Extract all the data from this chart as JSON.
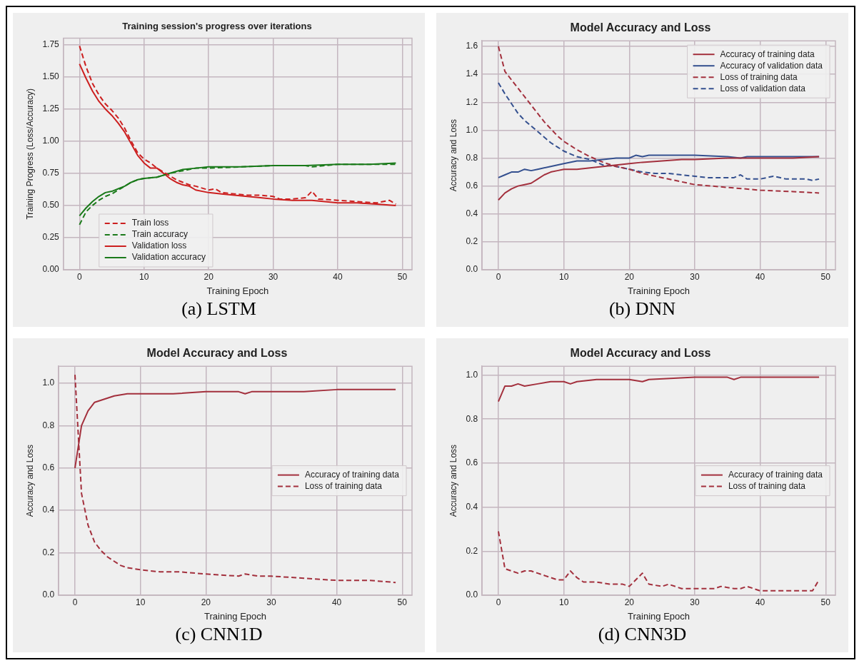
{
  "chart_data": [
    {
      "type": "line",
      "title": "Training session's progress over iterations",
      "xlabel": "Training Epoch",
      "ylabel": "Training Progress (Loss/Accuracy)",
      "annotations": [
        "(a) LSTM"
      ],
      "xlim": [
        -2.5,
        51.5
      ],
      "xticks": [
        0,
        10,
        20,
        30,
        40,
        50
      ],
      "ylim": [
        0,
        1.8
      ],
      "yticks": [
        {
          "value": 0,
          "label": "0.00"
        },
        0.25,
        {
          "value": 0.5,
          "label": "0.50"
        },
        0.75,
        {
          "value": 1,
          "label": "1.00"
        },
        1.25,
        {
          "value": 1.5,
          "label": "1.50"
        },
        1.75
      ],
      "grid": true,
      "legend": "bottom left",
      "series": [
        {
          "name": "Train loss",
          "color": "#cc1f1f",
          "line_style": "dashed",
          "x": [
            0,
            1,
            2,
            3,
            4,
            5,
            6,
            7,
            8,
            9,
            10,
            11,
            12,
            13,
            14,
            15,
            16,
            17,
            18,
            20,
            21,
            22,
            24,
            26,
            28,
            30,
            31,
            33,
            35,
            36,
            37,
            40,
            43,
            46,
            48,
            49
          ],
          "values": [
            1.74,
            1.58,
            1.45,
            1.36,
            1.29,
            1.24,
            1.18,
            1.1,
            1.0,
            0.91,
            0.86,
            0.83,
            0.79,
            0.76,
            0.73,
            0.7,
            0.68,
            0.66,
            0.65,
            0.62,
            0.63,
            0.6,
            0.59,
            0.58,
            0.58,
            0.57,
            0.55,
            0.55,
            0.56,
            0.61,
            0.55,
            0.54,
            0.53,
            0.52,
            0.54,
            0.51
          ]
        },
        {
          "name": "Train accuracy",
          "color": "#1a7a1a",
          "line_style": "dashed",
          "x": [
            0,
            1,
            2,
            3,
            4,
            5,
            6,
            7,
            8,
            9,
            10,
            12,
            14,
            16,
            18,
            20,
            25,
            30,
            35,
            36,
            40,
            45,
            49
          ],
          "values": [
            0.35,
            0.45,
            0.5,
            0.54,
            0.57,
            0.59,
            0.62,
            0.65,
            0.68,
            0.7,
            0.71,
            0.72,
            0.75,
            0.77,
            0.79,
            0.79,
            0.8,
            0.81,
            0.81,
            0.8,
            0.82,
            0.82,
            0.82
          ]
        },
        {
          "name": "Validation loss",
          "color": "#cc1f1f",
          "line_style": "solid",
          "x": [
            0,
            1,
            2,
            3,
            4,
            5,
            6,
            7,
            8,
            9,
            10,
            11,
            12,
            13,
            14,
            15,
            16,
            17,
            18,
            20,
            22,
            24,
            26,
            28,
            30,
            33,
            36,
            40,
            43,
            46,
            49
          ],
          "values": [
            1.6,
            1.49,
            1.39,
            1.31,
            1.25,
            1.2,
            1.14,
            1.07,
            0.98,
            0.89,
            0.83,
            0.79,
            0.79,
            0.75,
            0.71,
            0.68,
            0.66,
            0.65,
            0.62,
            0.6,
            0.59,
            0.58,
            0.57,
            0.56,
            0.55,
            0.54,
            0.54,
            0.52,
            0.52,
            0.51,
            0.5
          ]
        },
        {
          "name": "Validation accuracy",
          "color": "#1a7a1a",
          "line_style": "solid",
          "x": [
            0,
            1,
            2,
            3,
            4,
            5,
            6,
            7,
            8,
            9,
            10,
            12,
            14,
            16,
            18,
            20,
            25,
            30,
            35,
            40,
            45,
            49
          ],
          "values": [
            0.42,
            0.48,
            0.53,
            0.57,
            0.6,
            0.61,
            0.63,
            0.65,
            0.68,
            0.7,
            0.71,
            0.72,
            0.75,
            0.78,
            0.79,
            0.8,
            0.8,
            0.81,
            0.81,
            0.82,
            0.82,
            0.83
          ]
        }
      ]
    },
    {
      "type": "line",
      "title": "Model Accuracy and Loss",
      "xlabel": "Training Epoch",
      "ylabel": "Accuracy and Loss",
      "annotations": [
        "(b) DNN"
      ],
      "xlim": [
        -2.5,
        51.5
      ],
      "xticks": [
        0,
        10,
        20,
        30,
        40,
        50
      ],
      "ylim": [
        0,
        1.64
      ],
      "yticks": [
        {
          "value": 0,
          "label": "0.0"
        },
        0.2,
        0.4,
        0.6,
        0.8,
        {
          "value": 1,
          "label": "1.0"
        },
        1.2,
        1.4,
        1.6
      ],
      "grid": true,
      "legend": "top right",
      "series": [
        {
          "name": "Accuracy of training data",
          "color": "#a3303d",
          "line_style": "solid",
          "x": [
            0,
            1,
            2,
            3,
            4,
            5,
            6,
            7,
            8,
            9,
            10,
            12,
            14,
            16,
            18,
            20,
            22,
            25,
            28,
            30,
            35,
            40,
            45,
            49
          ],
          "values": [
            0.5,
            0.55,
            0.58,
            0.6,
            0.61,
            0.62,
            0.65,
            0.68,
            0.7,
            0.71,
            0.72,
            0.72,
            0.73,
            0.74,
            0.75,
            0.76,
            0.77,
            0.78,
            0.79,
            0.79,
            0.8,
            0.8,
            0.8,
            0.81
          ]
        },
        {
          "name": "Accuracy of validation data",
          "color": "#34508f",
          "line_style": "solid",
          "x": [
            0,
            1,
            2,
            3,
            4,
            5,
            6,
            8,
            10,
            12,
            14,
            16,
            18,
            20,
            21,
            22,
            23,
            25,
            30,
            35,
            37,
            38,
            40,
            45,
            49
          ],
          "values": [
            0.66,
            0.68,
            0.7,
            0.7,
            0.72,
            0.71,
            0.72,
            0.74,
            0.76,
            0.78,
            0.78,
            0.79,
            0.8,
            0.8,
            0.82,
            0.81,
            0.82,
            0.82,
            0.82,
            0.81,
            0.8,
            0.81,
            0.81,
            0.81,
            0.81
          ]
        },
        {
          "name": "Loss of training data",
          "color": "#a3303d",
          "line_style": "dashed",
          "x": [
            0,
            1,
            2,
            3,
            4,
            5,
            6,
            7,
            8,
            9,
            10,
            12,
            14,
            16,
            18,
            20,
            22,
            25,
            28,
            30,
            35,
            40,
            45,
            49
          ],
          "values": [
            1.6,
            1.42,
            1.36,
            1.3,
            1.24,
            1.18,
            1.12,
            1.06,
            1.01,
            0.96,
            0.92,
            0.86,
            0.81,
            0.77,
            0.74,
            0.72,
            0.69,
            0.66,
            0.63,
            0.61,
            0.59,
            0.57,
            0.56,
            0.55
          ]
        },
        {
          "name": "Loss of validation data",
          "color": "#34508f",
          "line_style": "dashed",
          "x": [
            0,
            1,
            2,
            3,
            4,
            5,
            6,
            7,
            8,
            9,
            10,
            12,
            14,
            15,
            16,
            18,
            20,
            22,
            24,
            26,
            28,
            30,
            32,
            36,
            37,
            38,
            40,
            42,
            44,
            47,
            48,
            49
          ],
          "values": [
            1.34,
            1.26,
            1.19,
            1.12,
            1.07,
            1.03,
            0.99,
            0.95,
            0.91,
            0.88,
            0.85,
            0.81,
            0.79,
            0.77,
            0.75,
            0.74,
            0.72,
            0.7,
            0.69,
            0.69,
            0.68,
            0.67,
            0.66,
            0.66,
            0.68,
            0.65,
            0.65,
            0.67,
            0.65,
            0.65,
            0.64,
            0.65
          ]
        }
      ]
    },
    {
      "type": "line",
      "title": "Model Accuracy and Loss",
      "xlabel": "Training Epoch",
      "ylabel": "Accuracy and Loss",
      "annotations": [
        "(c) CNN1D"
      ],
      "xlim": [
        -2.5,
        51.5
      ],
      "xticks": [
        0,
        10,
        20,
        30,
        40,
        50
      ],
      "ylim": [
        0,
        1.08
      ],
      "yticks": [
        {
          "value": 0,
          "label": "0.0"
        },
        0.2,
        0.4,
        0.6,
        0.8,
        {
          "value": 1,
          "label": "1.0"
        }
      ],
      "grid": true,
      "legend": "right",
      "series": [
        {
          "name": "Accuracy of training data",
          "color": "#a3303d",
          "line_style": "solid",
          "x": [
            0,
            1,
            2,
            3,
            4,
            5,
            6,
            8,
            10,
            15,
            20,
            25,
            26,
            27,
            30,
            35,
            40,
            45,
            49
          ],
          "values": [
            0.6,
            0.8,
            0.87,
            0.91,
            0.92,
            0.93,
            0.94,
            0.95,
            0.95,
            0.95,
            0.96,
            0.96,
            0.95,
            0.96,
            0.96,
            0.96,
            0.97,
            0.97,
            0.97
          ]
        },
        {
          "name": "Loss of training data",
          "color": "#a3303d",
          "line_style": "dashed",
          "x": [
            0,
            1,
            2,
            3,
            4,
            5,
            6,
            7,
            8,
            10,
            13,
            16,
            20,
            25,
            26,
            28,
            30,
            35,
            40,
            45,
            49
          ],
          "values": [
            1.04,
            0.48,
            0.33,
            0.25,
            0.21,
            0.18,
            0.16,
            0.14,
            0.13,
            0.12,
            0.11,
            0.11,
            0.1,
            0.09,
            0.1,
            0.09,
            0.09,
            0.08,
            0.07,
            0.07,
            0.06
          ]
        }
      ]
    },
    {
      "type": "line",
      "title": "Model Accuracy and Loss",
      "xlabel": "Training Epoch",
      "ylabel": "Accuracy and Loss",
      "annotations": [
        "(d) CNN3D"
      ],
      "xlim": [
        -2.5,
        51.5
      ],
      "xticks": [
        0,
        10,
        20,
        30,
        40,
        50
      ],
      "ylim": [
        0,
        1.04
      ],
      "yticks": [
        {
          "value": 0,
          "label": "0.0"
        },
        0.2,
        0.4,
        0.6,
        0.8,
        {
          "value": 1,
          "label": "1.0"
        }
      ],
      "grid": true,
      "legend": "right",
      "series": [
        {
          "name": "Accuracy of training data",
          "color": "#a3303d",
          "line_style": "solid",
          "x": [
            0,
            1,
            2,
            3,
            4,
            6,
            8,
            10,
            11,
            12,
            15,
            20,
            22,
            23,
            30,
            35,
            36,
            37,
            40,
            45,
            49
          ],
          "values": [
            0.88,
            0.95,
            0.95,
            0.96,
            0.95,
            0.96,
            0.97,
            0.97,
            0.96,
            0.97,
            0.98,
            0.98,
            0.97,
            0.98,
            0.99,
            0.99,
            0.98,
            0.99,
            0.99,
            0.99,
            0.99
          ]
        },
        {
          "name": "Loss of training data",
          "color": "#a3303d",
          "line_style": "dashed",
          "x": [
            0,
            1,
            2,
            3,
            4,
            5,
            6,
            8,
            9,
            10,
            11,
            12,
            13,
            15,
            17,
            19,
            20,
            22,
            23,
            25,
            26,
            28,
            30,
            33,
            34,
            36,
            37,
            38,
            40,
            42,
            45,
            48,
            49
          ],
          "values": [
            0.29,
            0.12,
            0.11,
            0.1,
            0.11,
            0.11,
            0.1,
            0.08,
            0.07,
            0.07,
            0.11,
            0.08,
            0.06,
            0.06,
            0.05,
            0.05,
            0.04,
            0.1,
            0.05,
            0.04,
            0.05,
            0.03,
            0.03,
            0.03,
            0.04,
            0.03,
            0.03,
            0.04,
            0.02,
            0.02,
            0.02,
            0.02,
            0.07
          ]
        }
      ]
    }
  ]
}
